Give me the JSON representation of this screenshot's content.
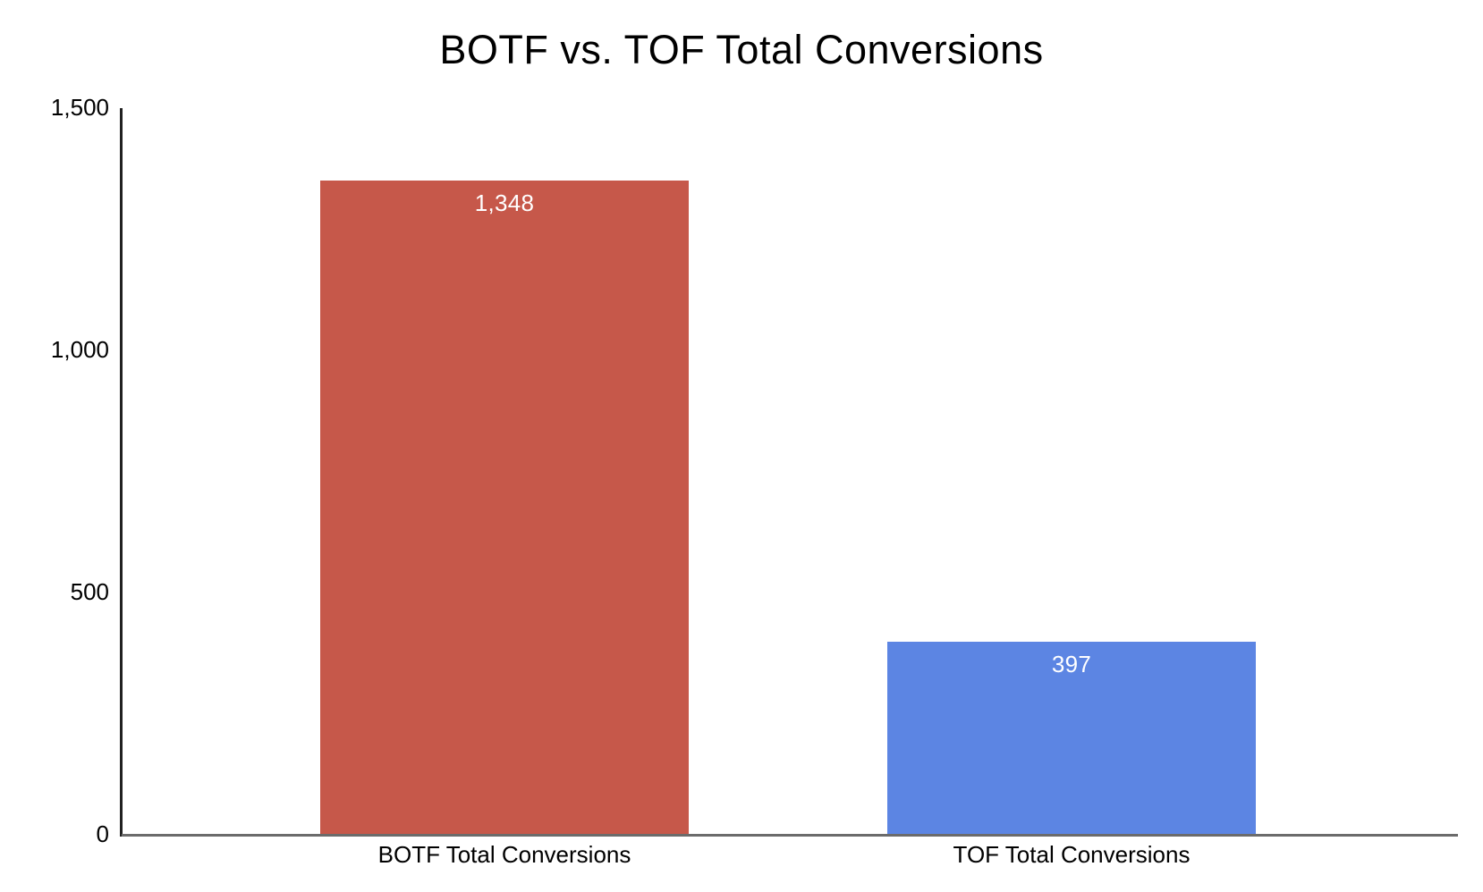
{
  "chart_data": {
    "type": "bar",
    "title": "BOTF vs. TOF Total Conversions",
    "categories": [
      "BOTF Total Conversions",
      "TOF Total Conversions"
    ],
    "values": [
      1348,
      397
    ],
    "value_labels": [
      "1,348",
      "397"
    ],
    "bar_colors": [
      "#C6584A",
      "#5C85E3"
    ],
    "value_label_color": "#FFFFFF",
    "text_color": "#000000",
    "y_axis_color": "#212121",
    "x_axis_color": "#6B6B6B",
    "background_color": "#FFFFFF",
    "xlabel": "",
    "ylabel": "",
    "ylim": [
      0,
      1500
    ],
    "ytick_values": [
      0,
      500,
      1000,
      1500
    ],
    "ytick_labels": [
      "0",
      "500",
      "1,000",
      "1,500"
    ],
    "grid": false,
    "legend": "none"
  }
}
